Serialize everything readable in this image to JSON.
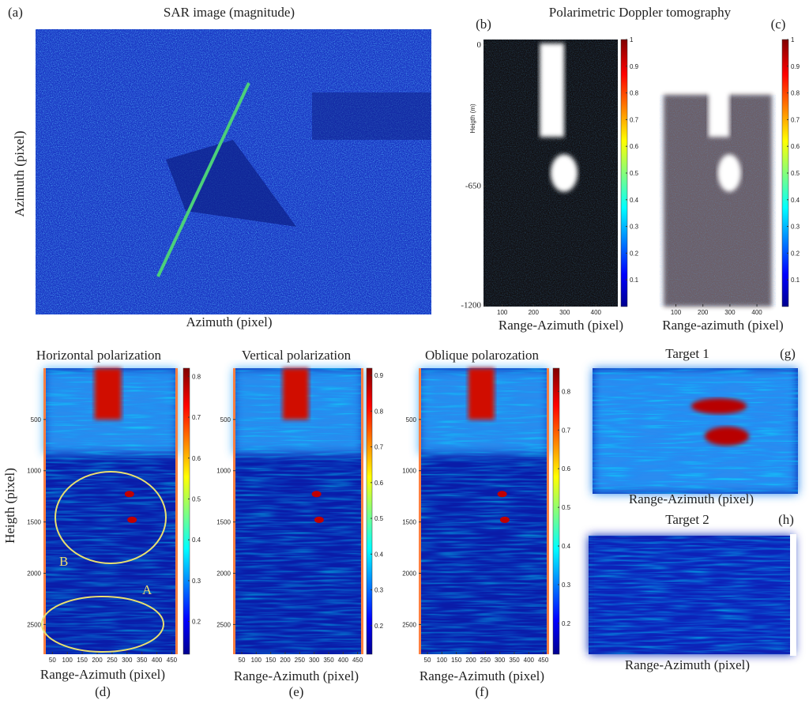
{
  "figure_title": "Polarimetric Doppler tomography",
  "panels": [
    {
      "label": "(a)",
      "title": "SAR image (magnitude)",
      "xlabel": "Azimuth (pixel)",
      "ylabel": "Azimuth (pixel)"
    },
    {
      "label": "(b)",
      "xlabel": "Range-Azimuth (pixel)",
      "ylabel": "Heigth (m)",
      "xticks": [
        100,
        200,
        300,
        400
      ],
      "yticks": [
        0,
        -650,
        -1200
      ],
      "cbar_ticks": [
        0.1,
        0.2,
        0.3,
        0.4,
        0.5,
        0.6,
        0.7,
        0.8,
        0.9,
        1
      ]
    },
    {
      "label": "(c)",
      "xlabel": "Range-azimuth (pixel)",
      "xticks": [
        100,
        200,
        300,
        400
      ],
      "cbar_ticks": [
        0.1,
        0.2,
        0.3,
        0.4,
        0.5,
        0.6,
        0.7,
        0.8,
        0.9,
        1
      ]
    },
    {
      "label": "(d)",
      "title": "Horizontal polarization",
      "xlabel": "Range-Azimuth (pixel)",
      "ylabel": "Heigth (pixel)",
      "xticks": [
        50,
        100,
        150,
        200,
        250,
        300,
        350,
        400,
        450
      ],
      "yticks": [
        500,
        1000,
        1500,
        2000,
        2500
      ],
      "cbar_ticks": [
        0.2,
        0.3,
        0.4,
        0.5,
        0.6,
        0.7,
        0.8
      ],
      "annotations": [
        "B",
        "A"
      ]
    },
    {
      "label": "(e)",
      "title": "Vertical polarization",
      "xlabel": "Range-Azimuth (pixel)",
      "xticks": [
        50,
        100,
        150,
        200,
        250,
        300,
        350,
        400,
        450
      ],
      "yticks": [
        500,
        1000,
        1500,
        2000,
        2500
      ],
      "cbar_ticks": [
        0.2,
        0.3,
        0.4,
        0.5,
        0.6,
        0.7,
        0.8,
        0.9
      ]
    },
    {
      "label": "(f)",
      "title": "Oblique polarozation",
      "xlabel": "Range-Azimuth (pixel)",
      "xticks": [
        50,
        100,
        150,
        200,
        250,
        300,
        350,
        400,
        450
      ],
      "yticks": [
        500,
        1000,
        1500,
        2000,
        2500
      ],
      "cbar_ticks": [
        0.2,
        0.3,
        0.4,
        0.5,
        0.6,
        0.7,
        0.8
      ]
    },
    {
      "label": "(g)",
      "title": "Target 1",
      "xlabel": "Range-Azimuth (pixel)"
    },
    {
      "label": "(h)",
      "title": "Target 2",
      "xlabel": "Range-Azimuth (pixel)"
    }
  ]
}
